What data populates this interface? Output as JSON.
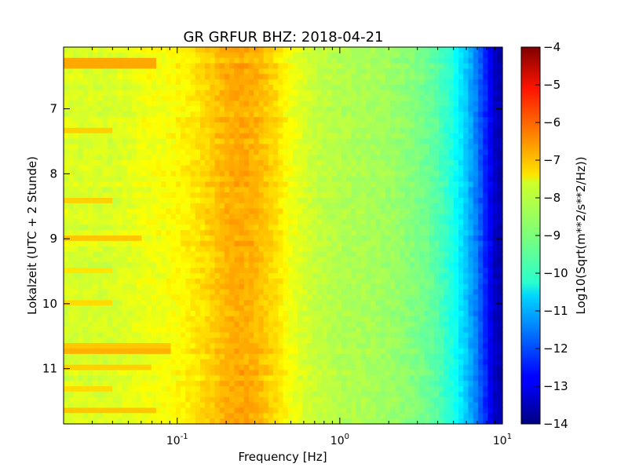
{
  "chart_data": {
    "type": "heatmap",
    "title": "GR GRFUR BHZ: 2018-04-21",
    "xlabel": "Frequency [Hz]",
    "ylabel": "Lokalzeit (UTC + 2 Stunde)",
    "colorbar_label": "Log10(Sqrt(m**2/s**2/Hz))",
    "x_scale": "log",
    "xlim": [
      0.02,
      10
    ],
    "x_ticks": [
      {
        "value": 0.1,
        "base": "10",
        "exp": "-1"
      },
      {
        "value": 1,
        "base": "10",
        "exp": "0"
      },
      {
        "value": 10,
        "base": "10",
        "exp": "1"
      }
    ],
    "ylim": [
      11.85,
      6.05
    ],
    "y_inverted": true,
    "y_ticks": [
      "7",
      "8",
      "9",
      "10",
      "11"
    ],
    "color_range": [
      -14,
      -4
    ],
    "colormap": "jet",
    "colorbar_ticks": [
      "-4",
      "-5",
      "-6",
      "-7",
      "-8",
      "-9",
      "-10",
      "-11",
      "-12",
      "-13",
      "-14"
    ],
    "mean_spectrum": {
      "frequency_hz": [
        0.02,
        0.04,
        0.06,
        0.08,
        0.12,
        0.15,
        0.2,
        0.25,
        0.3,
        0.4,
        0.5,
        0.7,
        1.0,
        1.5,
        2.0,
        3.0,
        4.0,
        5.0,
        6.0,
        7.0,
        8.0,
        9.0,
        10.0
      ],
      "log10_amplitude": [
        -8.1,
        -8.15,
        -7.9,
        -7.85,
        -7.6,
        -7.35,
        -7.0,
        -6.9,
        -7.0,
        -7.4,
        -7.9,
        -8.3,
        -8.5,
        -8.6,
        -8.7,
        -9.0,
        -9.4,
        -10.0,
        -10.8,
        -11.6,
        -12.5,
        -13.3,
        -13.6
      ]
    },
    "transient_events": [
      {
        "time": 6.3,
        "f_max_hz": 0.075,
        "log10_amplitude": -6.9
      },
      {
        "time": 7.33,
        "f_max_hz": 0.04,
        "log10_amplitude": -7.3
      },
      {
        "time": 8.4,
        "f_max_hz": 0.04,
        "log10_amplitude": -7.3
      },
      {
        "time": 9.0,
        "f_max_hz": 0.06,
        "log10_amplitude": -7.2
      },
      {
        "time": 9.5,
        "f_max_hz": 0.04,
        "log10_amplitude": -7.5
      },
      {
        "time": 9.95,
        "f_max_hz": 0.04,
        "log10_amplitude": -7.4
      },
      {
        "time": 10.65,
        "f_max_hz": 0.09,
        "log10_amplitude": -7.2
      },
      {
        "time": 10.75,
        "f_max_hz": 0.09,
        "log10_amplitude": -7.0
      },
      {
        "time": 10.95,
        "f_max_hz": 0.07,
        "log10_amplitude": -7.3
      },
      {
        "time": 11.33,
        "f_max_hz": 0.04,
        "log10_amplitude": -7.4
      },
      {
        "time": 11.65,
        "f_max_hz": 0.075,
        "log10_amplitude": -7.2
      }
    ]
  }
}
